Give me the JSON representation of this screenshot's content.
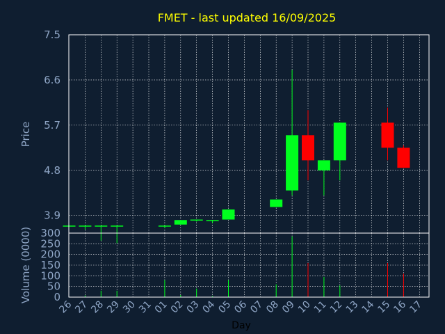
{
  "title": "FMET - last updated 16/09/2025",
  "colors": {
    "background": "#0f1e30",
    "title": "#ffff00",
    "axis_text": "#8fa6c6",
    "xlabel": "#000000",
    "up": "#00ff1e",
    "down": "#ff0000",
    "grid": "#ffffff",
    "frame": "#ffffff"
  },
  "chart_data": [
    {
      "type": "candlestick",
      "title": "FMET - last updated 16/09/2025",
      "ylabel": "Price",
      "ylim": [
        3.55,
        7.5
      ],
      "yticks": [
        "7.5",
        "6.6",
        "5.7",
        "4.8",
        "3.9"
      ],
      "grid": true,
      "categories": [
        "26",
        "27",
        "28",
        "29",
        "30",
        "31",
        "01",
        "02",
        "03",
        "04",
        "05",
        "06",
        "07",
        "08",
        "09",
        "10",
        "11",
        "12",
        "13",
        "14",
        "15",
        "16",
        "17"
      ],
      "candles": [
        {
          "x": "26",
          "open": 3.7,
          "high": 3.7,
          "low": 3.7,
          "close": 3.7
        },
        {
          "x": "27",
          "open": 3.7,
          "high": 3.7,
          "low": 3.62,
          "close": 3.7
        },
        {
          "x": "28",
          "open": 3.7,
          "high": 3.7,
          "low": 3.4,
          "close": 3.7
        },
        {
          "x": "29",
          "open": 3.7,
          "high": 3.7,
          "low": 3.35,
          "close": 3.7
        },
        {
          "x": "01",
          "open": 3.7,
          "high": 3.7,
          "low": 3.65,
          "close": 3.7
        },
        {
          "x": "02",
          "open": 3.72,
          "high": 3.81,
          "low": 3.72,
          "close": 3.81
        },
        {
          "x": "03",
          "open": 3.8,
          "high": 3.82,
          "low": 3.78,
          "close": 3.82
        },
        {
          "x": "04",
          "open": 3.8,
          "high": 3.81,
          "low": 3.75,
          "close": 3.81
        },
        {
          "x": "05",
          "open": 3.82,
          "high": 4.02,
          "low": 3.82,
          "close": 4.02
        },
        {
          "x": "08",
          "open": 4.07,
          "high": 4.22,
          "low": 4.07,
          "close": 4.22
        },
        {
          "x": "09",
          "open": 4.4,
          "high": 6.8,
          "low": 4.3,
          "close": 5.5
        },
        {
          "x": "10",
          "open": 5.5,
          "high": 6.0,
          "low": 4.6,
          "close": 5.0
        },
        {
          "x": "11",
          "open": 4.8,
          "high": 5.0,
          "low": 4.3,
          "close": 5.0
        },
        {
          "x": "12",
          "open": 5.0,
          "high": 5.75,
          "low": 4.6,
          "close": 5.75
        },
        {
          "x": "15",
          "open": 5.75,
          "high": 6.05,
          "low": 5.0,
          "close": 5.25
        },
        {
          "x": "16",
          "open": 5.25,
          "high": 5.3,
          "low": 4.85,
          "close": 4.85
        }
      ]
    },
    {
      "type": "bar",
      "ylabel": "Volume (0000)",
      "xlabel": "Day",
      "ylim": [
        0,
        300
      ],
      "yticks": [
        "300",
        "250",
        "200",
        "150",
        "100",
        "50",
        "0"
      ],
      "grid": true,
      "categories": [
        "26",
        "27",
        "28",
        "29",
        "30",
        "31",
        "01",
        "02",
        "03",
        "04",
        "05",
        "06",
        "07",
        "08",
        "09",
        "10",
        "11",
        "12",
        "13",
        "14",
        "15",
        "16",
        "17"
      ],
      "bars": [
        {
          "x": "26",
          "value": 2,
          "dir": "up"
        },
        {
          "x": "27",
          "value": 8,
          "dir": "up"
        },
        {
          "x": "28",
          "value": 30,
          "dir": "up"
        },
        {
          "x": "29",
          "value": 30,
          "dir": "up"
        },
        {
          "x": "01",
          "value": 80,
          "dir": "up"
        },
        {
          "x": "02",
          "value": 10,
          "dir": "up"
        },
        {
          "x": "03",
          "value": 40,
          "dir": "up"
        },
        {
          "x": "04",
          "value": 5,
          "dir": "up"
        },
        {
          "x": "05",
          "value": 80,
          "dir": "up"
        },
        {
          "x": "08",
          "value": 60,
          "dir": "up"
        },
        {
          "x": "09",
          "value": 285,
          "dir": "up"
        },
        {
          "x": "10",
          "value": 160,
          "dir": "down"
        },
        {
          "x": "11",
          "value": 95,
          "dir": "up"
        },
        {
          "x": "12",
          "value": 55,
          "dir": "up"
        },
        {
          "x": "15",
          "value": 160,
          "dir": "down"
        },
        {
          "x": "16",
          "value": 110,
          "dir": "down"
        }
      ]
    }
  ]
}
